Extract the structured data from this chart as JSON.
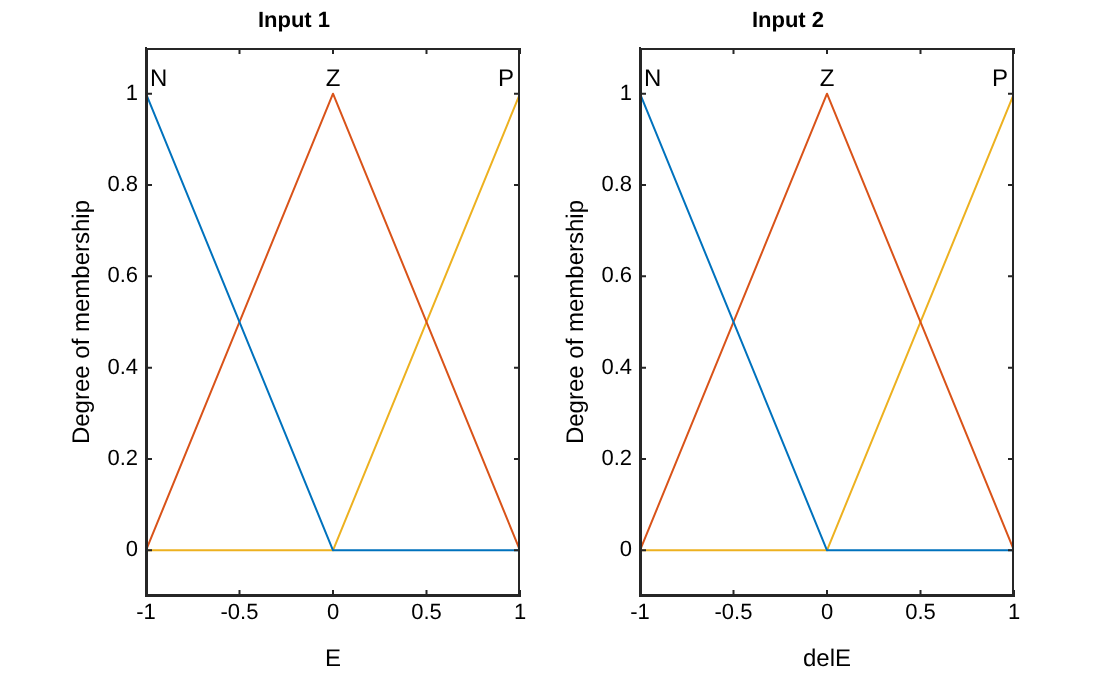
{
  "chart_data": [
    {
      "type": "line",
      "title": "Input 1",
      "xlabel": "E",
      "ylabel": "Degree of membership",
      "xlim": [
        -1,
        1
      ],
      "xticks": [
        -1,
        -0.5,
        0,
        0.5,
        1
      ],
      "ylim": [
        -0.1,
        1.1
      ],
      "yticks": [
        0,
        0.2,
        0.4,
        0.6,
        0.8,
        1
      ],
      "series": [
        {
          "name": "N",
          "color": "#0072bd",
          "x": [
            -1,
            0,
            1
          ],
          "values": [
            1,
            0,
            0
          ]
        },
        {
          "name": "Z",
          "color": "#d95319",
          "x": [
            -1,
            0,
            1
          ],
          "values": [
            0,
            1,
            0
          ]
        },
        {
          "name": "P",
          "color": "#edb120",
          "x": [
            -1,
            0,
            1
          ],
          "values": [
            0,
            0,
            1
          ]
        }
      ]
    },
    {
      "type": "line",
      "title": "Input 2",
      "xlabel": "delE",
      "ylabel": "Degree of membership",
      "xlim": [
        -1,
        1
      ],
      "xticks": [
        -1,
        -0.5,
        0,
        0.5,
        1
      ],
      "ylim": [
        -0.1,
        1.1
      ],
      "yticks": [
        0,
        0.2,
        0.4,
        0.6,
        0.8,
        1
      ],
      "series": [
        {
          "name": "N",
          "color": "#0072bd",
          "x": [
            -1,
            0,
            1
          ],
          "values": [
            1,
            0,
            0
          ]
        },
        {
          "name": "Z",
          "color": "#d95319",
          "x": [
            -1,
            0,
            1
          ],
          "values": [
            0,
            1,
            0
          ]
        },
        {
          "name": "P",
          "color": "#edb120",
          "x": [
            -1,
            0,
            1
          ],
          "values": [
            0,
            0,
            1
          ]
        }
      ]
    }
  ]
}
